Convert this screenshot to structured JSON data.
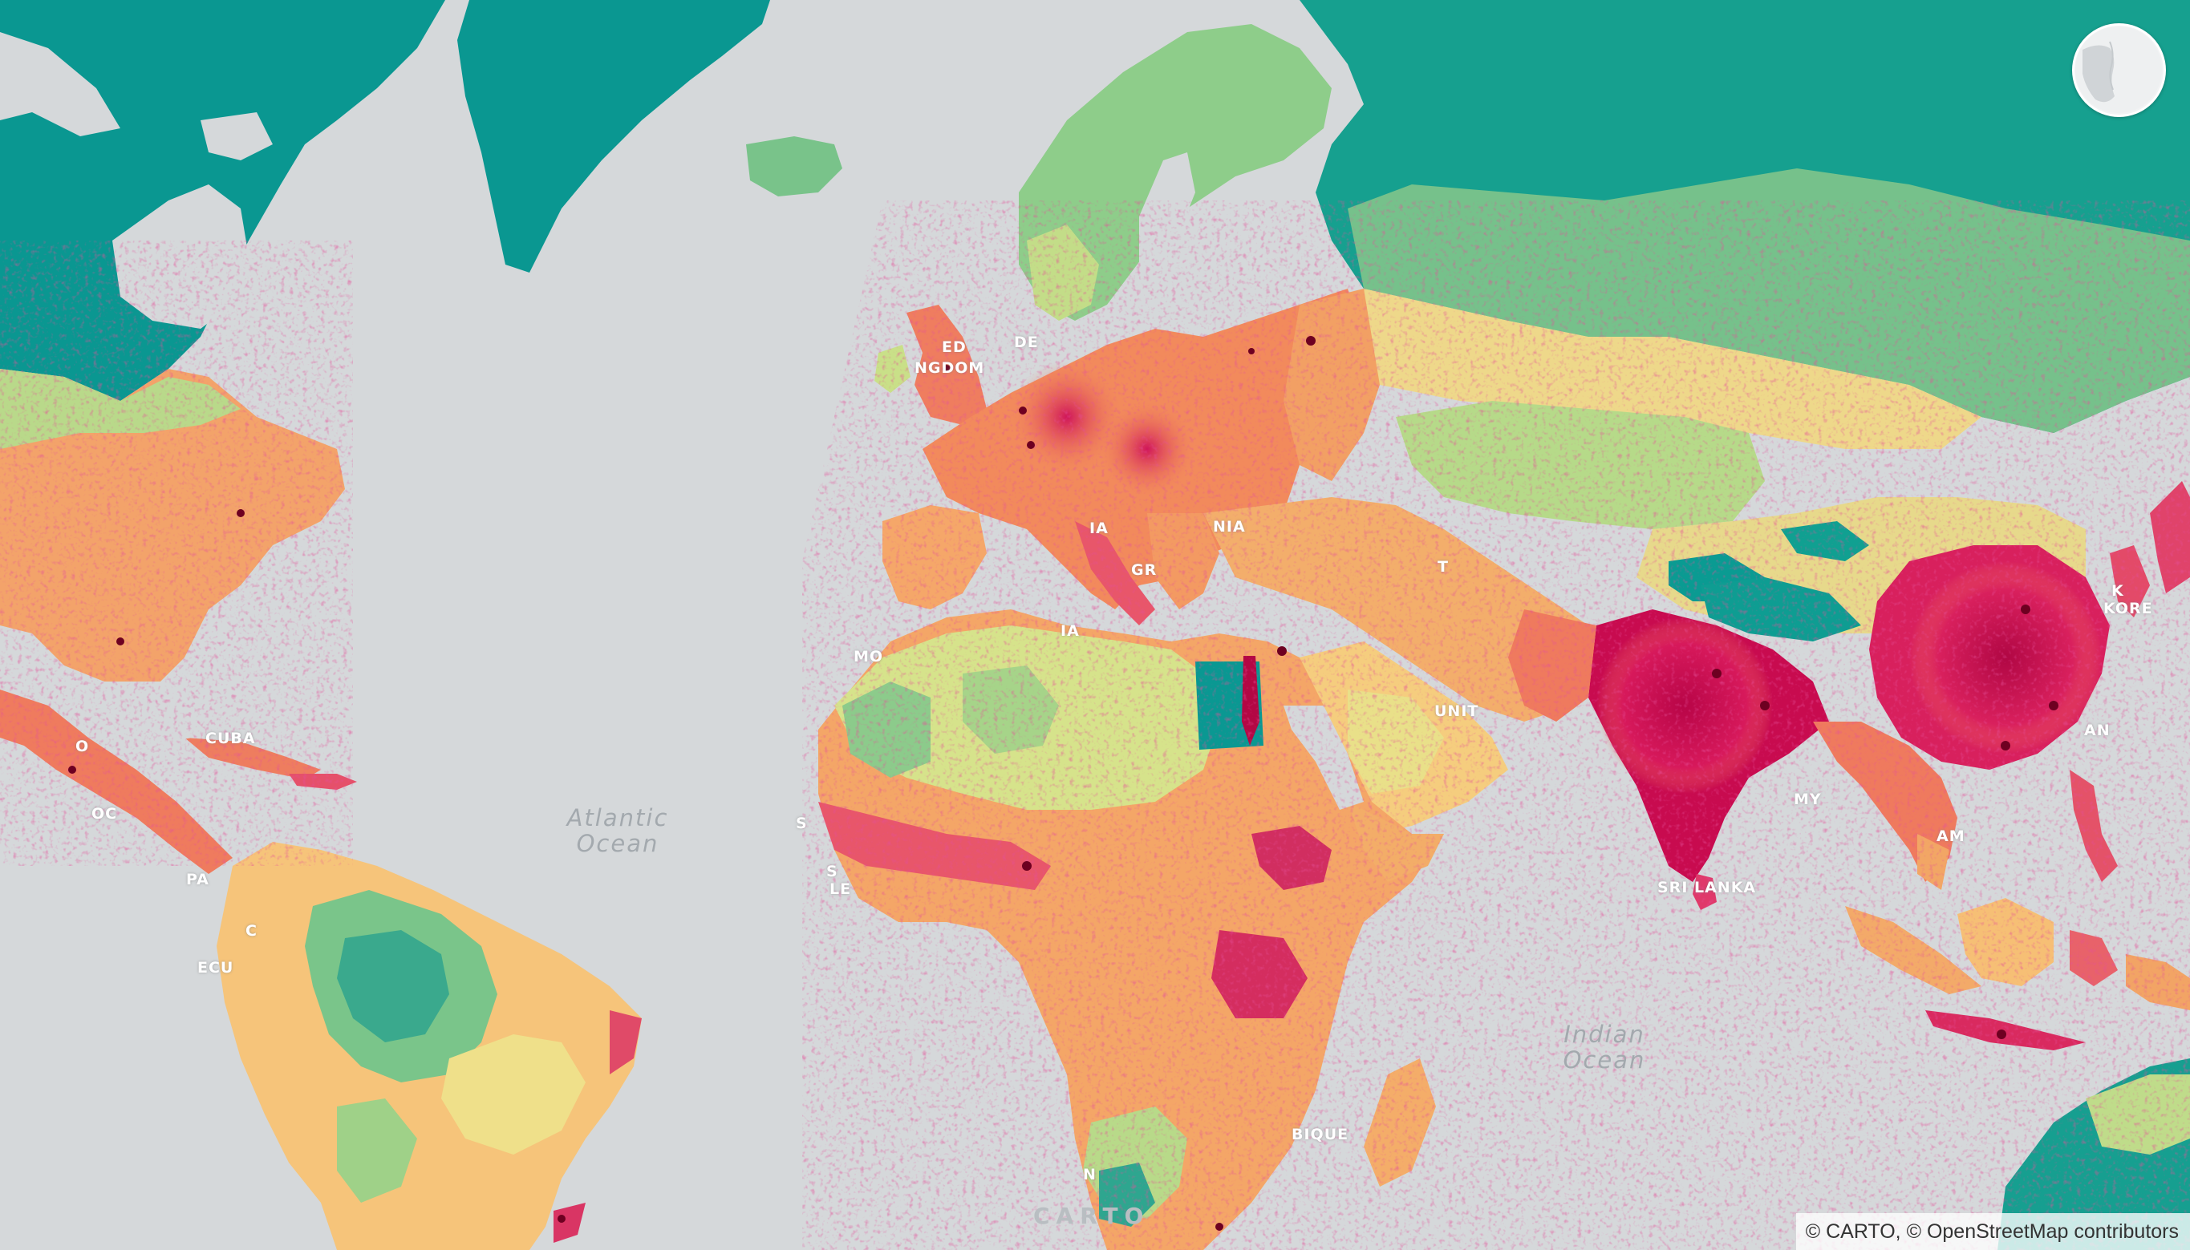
{
  "map": {
    "basemap": "CARTO Positron",
    "layer_palette": [
      "#009b95",
      "#4fb38f",
      "#a8d589",
      "#f0e68a",
      "#f9b572",
      "#f2825b",
      "#e2446a",
      "#c30a4f"
    ],
    "ocean_color": "#d5d8da"
  },
  "labels": {
    "oceans": [
      {
        "line1": "Atlantic",
        "line2": "Ocean"
      },
      {
        "line1": "Indian",
        "line2": "Ocean"
      }
    ],
    "countries": [
      "ED",
      "NGDOM",
      "DE",
      "IA",
      "GR",
      "IA",
      "MO",
      "NIA",
      "T",
      "UNIT",
      "SRI LANKA",
      "MY",
      "AM",
      "AN",
      "K",
      "KORE",
      "O",
      "CUBA",
      "OC",
      "S",
      "S",
      "LE",
      "PA",
      "C",
      "ECU",
      "BIQUE",
      "N"
    ]
  },
  "controls": {
    "globe_button": {
      "icon": "globe-icon"
    }
  },
  "attribution": "© CARTO, © OpenStreetMap contributors",
  "logo": "CARTO"
}
